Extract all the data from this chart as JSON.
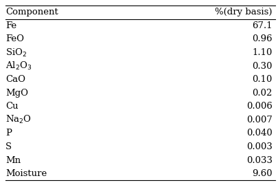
{
  "headers": [
    "Component",
    "%(dry basis)"
  ],
  "rows": [
    [
      "Fe",
      "67.1"
    ],
    [
      "FeO",
      "0.96"
    ],
    [
      "SiO$_2$",
      "1.10"
    ],
    [
      "Al$_2$O$_3$",
      "0.30"
    ],
    [
      "CaO",
      "0.10"
    ],
    [
      "MgO",
      "0.02"
    ],
    [
      "Cu",
      "0.006"
    ],
    [
      "Na$_2$O",
      "0.007"
    ],
    [
      "P",
      "0.040"
    ],
    [
      "S",
      "0.003"
    ],
    [
      "Mn",
      "0.033"
    ],
    [
      "Moisture",
      "9.60"
    ]
  ],
  "bg_color": "#ffffff",
  "text_color": "#000000",
  "font_size": 9.5,
  "header_font_size": 9.5
}
